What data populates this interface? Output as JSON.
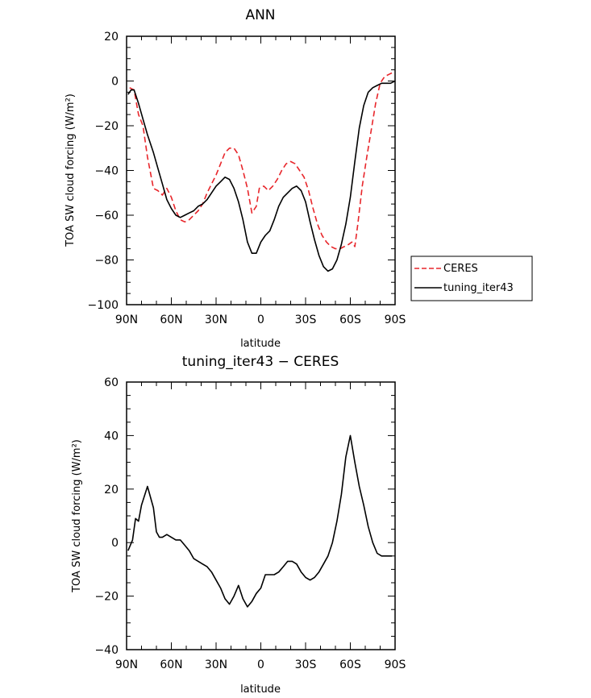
{
  "chart_data": [
    {
      "type": "line",
      "title": "ANN",
      "xlabel": "latitude",
      "ylabel": "TOA SW cloud forcing (W/m²)",
      "xlim": [
        90,
        -90
      ],
      "ylim": [
        -100,
        20
      ],
      "x_ticks": [
        90,
        60,
        30,
        0,
        -30,
        -60,
        -90
      ],
      "x_tick_labels": [
        "90N",
        "60N",
        "30N",
        "0",
        "30S",
        "60S",
        "90S"
      ],
      "y_ticks": [
        -100,
        -80,
        -60,
        -40,
        -20,
        0,
        20
      ],
      "y_tick_labels": [
        "−100",
        "−80",
        "−60",
        "−40",
        "−20",
        "0",
        "20"
      ],
      "legend_position": "right",
      "series": [
        {
          "name": "CERES",
          "color": "#e8262b",
          "dash": "dashed",
          "points": [
            [
              88,
              -3
            ],
            [
              85,
              -4
            ],
            [
              82,
              -15
            ],
            [
              79,
              -20
            ],
            [
              76,
              -34
            ],
            [
              72,
              -48
            ],
            [
              69,
              -49
            ],
            [
              66,
              -51
            ],
            [
              63,
              -48
            ],
            [
              60,
              -52
            ],
            [
              57,
              -58
            ],
            [
              54,
              -62
            ],
            [
              51,
              -63
            ],
            [
              48,
              -62
            ],
            [
              45,
              -60
            ],
            [
              42,
              -58
            ],
            [
              39,
              -55
            ],
            [
              36,
              -50
            ],
            [
              33,
              -46
            ],
            [
              30,
              -42
            ],
            [
              27,
              -37
            ],
            [
              24,
              -32
            ],
            [
              21,
              -30
            ],
            [
              18,
              -30
            ],
            [
              15,
              -33
            ],
            [
              12,
              -40
            ],
            [
              9,
              -48
            ],
            [
              6,
              -59
            ],
            [
              3,
              -56
            ],
            [
              1,
              -48
            ],
            [
              -2,
              -47
            ],
            [
              -5,
              -49
            ],
            [
              -8,
              -47
            ],
            [
              -11,
              -44
            ],
            [
              -14,
              -40
            ],
            [
              -17,
              -37
            ],
            [
              -20,
              -36
            ],
            [
              -23,
              -37
            ],
            [
              -26,
              -40
            ],
            [
              -29,
              -43
            ],
            [
              -32,
              -49
            ],
            [
              -35,
              -57
            ],
            [
              -38,
              -64
            ],
            [
              -41,
              -69
            ],
            [
              -44,
              -72
            ],
            [
              -47,
              -74
            ],
            [
              -50,
              -75
            ],
            [
              -53,
              -75
            ],
            [
              -56,
              -74
            ],
            [
              -59,
              -73
            ],
            [
              -61,
              -72
            ],
            [
              -63,
              -74
            ],
            [
              -65,
              -64
            ],
            [
              -68,
              -47
            ],
            [
              -71,
              -34
            ],
            [
              -74,
              -22
            ],
            [
              -77,
              -10
            ],
            [
              -80,
              -1
            ],
            [
              -83,
              2
            ],
            [
              -86,
              3
            ],
            [
              -89,
              4
            ]
          ]
        },
        {
          "name": "tuning_iter43",
          "color": "#000000",
          "dash": "solid",
          "points": [
            [
              89,
              -6
            ],
            [
              87,
              -4
            ],
            [
              85,
              -4
            ],
            [
              82,
              -10
            ],
            [
              79,
              -17
            ],
            [
              76,
              -24
            ],
            [
              72,
              -32
            ],
            [
              69,
              -39
            ],
            [
              66,
              -46
            ],
            [
              63,
              -53
            ],
            [
              60,
              -57
            ],
            [
              57,
              -60
            ],
            [
              54,
              -61
            ],
            [
              51,
              -60
            ],
            [
              48,
              -59
            ],
            [
              45,
              -58
            ],
            [
              42,
              -56
            ],
            [
              39,
              -55
            ],
            [
              36,
              -53
            ],
            [
              33,
              -50
            ],
            [
              30,
              -47
            ],
            [
              27,
              -45
            ],
            [
              24,
              -43
            ],
            [
              21,
              -44
            ],
            [
              18,
              -48
            ],
            [
              15,
              -54
            ],
            [
              12,
              -62
            ],
            [
              9,
              -72
            ],
            [
              6,
              -77
            ],
            [
              3,
              -77
            ],
            [
              0,
              -72
            ],
            [
              -3,
              -69
            ],
            [
              -6,
              -67
            ],
            [
              -9,
              -62
            ],
            [
              -12,
              -56
            ],
            [
              -15,
              -52
            ],
            [
              -18,
              -50
            ],
            [
              -21,
              -48
            ],
            [
              -24,
              -47
            ],
            [
              -27,
              -49
            ],
            [
              -30,
              -54
            ],
            [
              -33,
              -63
            ],
            [
              -36,
              -71
            ],
            [
              -39,
              -78
            ],
            [
              -42,
              -83
            ],
            [
              -45,
              -85
            ],
            [
              -48,
              -84
            ],
            [
              -51,
              -80
            ],
            [
              -54,
              -73
            ],
            [
              -57,
              -64
            ],
            [
              -60,
              -52
            ],
            [
              -63,
              -36
            ],
            [
              -66,
              -21
            ],
            [
              -69,
              -11
            ],
            [
              -72,
              -5
            ],
            [
              -75,
              -3
            ],
            [
              -78,
              -2
            ],
            [
              -81,
              -1
            ],
            [
              -84,
              -1
            ],
            [
              -87,
              -1
            ],
            [
              -90,
              0
            ]
          ]
        }
      ]
    },
    {
      "type": "line",
      "title": "tuning_iter43 − CERES",
      "xlabel": "latitude",
      "ylabel": "TOA SW cloud forcing (W/m²)",
      "xlim": [
        90,
        -90
      ],
      "ylim": [
        -40,
        60
      ],
      "x_ticks": [
        90,
        60,
        30,
        0,
        -30,
        -60,
        -90
      ],
      "x_tick_labels": [
        "90N",
        "60N",
        "30N",
        "0",
        "30S",
        "60S",
        "90S"
      ],
      "y_ticks": [
        -40,
        -20,
        0,
        20,
        40,
        60
      ],
      "y_tick_labels": [
        "−40",
        "−20",
        "0",
        "20",
        "40",
        "60"
      ],
      "series": [
        {
          "color": "#000000",
          "dash": "solid",
          "points": [
            [
              89,
              -3
            ],
            [
              86,
              1
            ],
            [
              84,
              9
            ],
            [
              82,
              8
            ],
            [
              80,
              14
            ],
            [
              76,
              21
            ],
            [
              72,
              13
            ],
            [
              70,
              4
            ],
            [
              68,
              2
            ],
            [
              66,
              2
            ],
            [
              63,
              3
            ],
            [
              60,
              2
            ],
            [
              57,
              1
            ],
            [
              54,
              1
            ],
            [
              51,
              -1
            ],
            [
              48,
              -3
            ],
            [
              45,
              -6
            ],
            [
              42,
              -7
            ],
            [
              39,
              -8
            ],
            [
              36,
              -9
            ],
            [
              33,
              -11
            ],
            [
              30,
              -14
            ],
            [
              27,
              -17
            ],
            [
              24,
              -21
            ],
            [
              21,
              -23
            ],
            [
              18,
              -20
            ],
            [
              15,
              -16
            ],
            [
              12,
              -21
            ],
            [
              9,
              -24
            ],
            [
              6,
              -22
            ],
            [
              3,
              -19
            ],
            [
              0,
              -17
            ],
            [
              -3,
              -12
            ],
            [
              -6,
              -12
            ],
            [
              -9,
              -12
            ],
            [
              -12,
              -11
            ],
            [
              -15,
              -9
            ],
            [
              -18,
              -7
            ],
            [
              -21,
              -7
            ],
            [
              -24,
              -8
            ],
            [
              -27,
              -11
            ],
            [
              -30,
              -13
            ],
            [
              -33,
              -14
            ],
            [
              -36,
              -13
            ],
            [
              -39,
              -11
            ],
            [
              -42,
              -8
            ],
            [
              -45,
              -5
            ],
            [
              -48,
              0
            ],
            [
              -51,
              8
            ],
            [
              -54,
              18
            ],
            [
              -57,
              32
            ],
            [
              -60,
              40
            ],
            [
              -63,
              30
            ],
            [
              -66,
              21
            ],
            [
              -69,
              14
            ],
            [
              -72,
              6
            ],
            [
              -75,
              0
            ],
            [
              -78,
              -4
            ],
            [
              -81,
              -5
            ],
            [
              -84,
              -5
            ],
            [
              -88,
              -5
            ]
          ]
        }
      ]
    }
  ]
}
